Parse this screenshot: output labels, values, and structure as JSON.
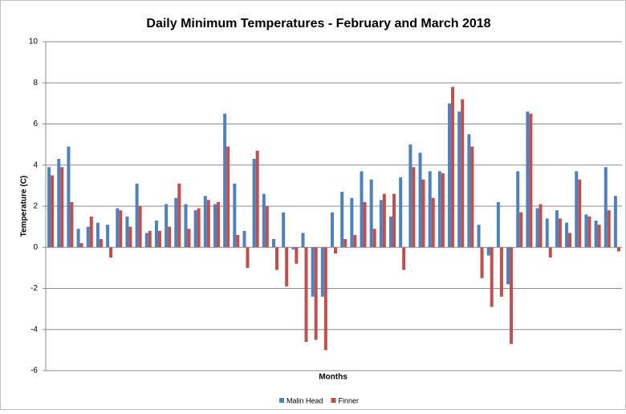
{
  "chart_data": {
    "type": "bar",
    "title": "Daily Minimum Temperatures - February and March 2018",
    "x_label": "Months",
    "y_label": "Temperature (C)",
    "categories": [
      null,
      null,
      null,
      null,
      null,
      null,
      null,
      null,
      null,
      null,
      null,
      null,
      null,
      null,
      null,
      null,
      null,
      null,
      null,
      null,
      null,
      null,
      null,
      null,
      null,
      null,
      null,
      null,
      null,
      null,
      null,
      null,
      null,
      null,
      null,
      null,
      null,
      null,
      null,
      null,
      null,
      null,
      null,
      null,
      null,
      null,
      null,
      null,
      null,
      null,
      null,
      null,
      null,
      null,
      null,
      null,
      null,
      null,
      null
    ],
    "series": [
      {
        "name": "Malin Head",
        "color": "#4f81bd",
        "values": [
          3.9,
          4.3,
          4.9,
          0.9,
          1.0,
          1.2,
          1.1,
          1.9,
          1.5,
          3.1,
          0.7,
          1.3,
          2.1,
          2.4,
          2.1,
          1.8,
          2.5,
          2.1,
          6.5,
          3.1,
          0.8,
          4.3,
          2.6,
          0.4,
          1.7,
          -0.1,
          0.7,
          -2.4,
          -2.4,
          1.7,
          2.7,
          2.4,
          3.7,
          3.3,
          2.3,
          1.5,
          3.4,
          5.0,
          4.6,
          3.7,
          3.7,
          7.0,
          6.6,
          5.5,
          1.1,
          -0.4,
          2.2,
          -1.8,
          3.7,
          6.6,
          1.9,
          1.4,
          1.8,
          1.2,
          3.7,
          1.6,
          1.3,
          3.9,
          2.5
        ]
      },
      {
        "name": "Finner",
        "color": "#c0504d",
        "values": [
          3.5,
          3.9,
          2.2,
          0.2,
          1.5,
          0.4,
          -0.5,
          1.8,
          1.0,
          2.0,
          0.8,
          0.8,
          1.0,
          3.1,
          0.9,
          1.9,
          2.3,
          2.2,
          4.9,
          0.6,
          -1.0,
          4.7,
          2.0,
          -1.1,
          -1.9,
          -0.8,
          -4.6,
          -4.5,
          -5.0,
          -0.3,
          0.4,
          0.6,
          2.2,
          0.9,
          2.6,
          2.6,
          -1.1,
          3.9,
          3.3,
          2.4,
          3.6,
          7.8,
          7.2,
          4.9,
          -1.5,
          -2.9,
          -2.4,
          -4.7,
          1.7,
          6.5,
          2.1,
          -0.5,
          1.4,
          0.7,
          3.3,
          1.5,
          1.1,
          1.8,
          -0.2
        ]
      }
    ],
    "ylim": [
      -6,
      10
    ],
    "yticks": [
      -6,
      -4,
      -2,
      0,
      2,
      4,
      6,
      8,
      10
    ],
    "grid": true,
    "legend": "bottom"
  }
}
